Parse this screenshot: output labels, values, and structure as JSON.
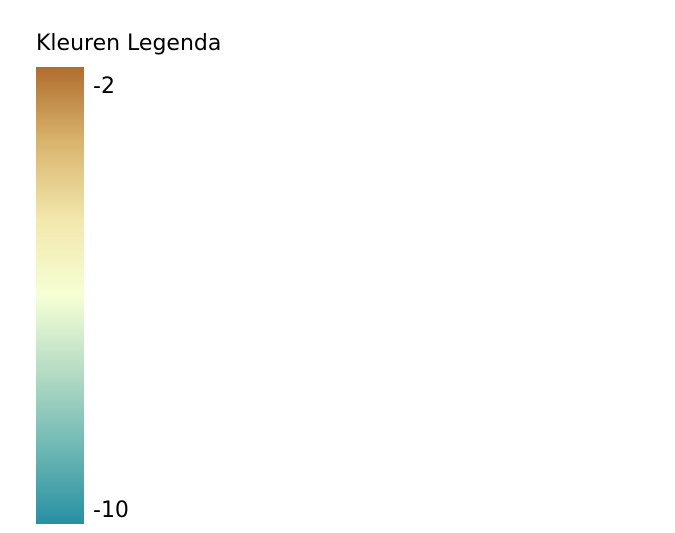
{
  "legend": {
    "title": "Kleuren Legenda",
    "max_label": "-2",
    "min_label": "-10",
    "max_value": -2,
    "min_value": -10,
    "gradient_top_to_bottom": [
      "#b06d2e",
      "#d9b56e",
      "#f2e7ac",
      "#f6ffd4",
      "#b5dcc4",
      "#6fb8b4",
      "#2790a3"
    ]
  }
}
